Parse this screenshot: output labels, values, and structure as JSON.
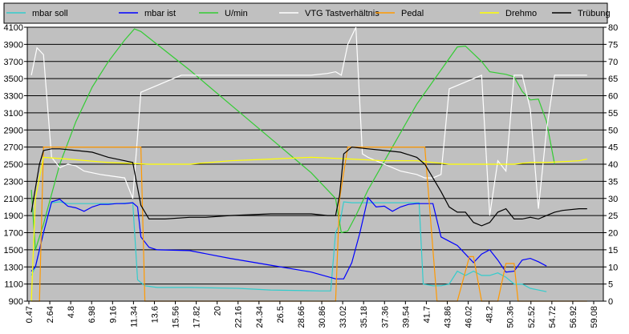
{
  "chart_data": {
    "type": "line",
    "title": "",
    "xlabel": "",
    "ylabel": "",
    "y_left": {
      "range": [
        900,
        4100
      ],
      "ticks": [
        900,
        1100,
        1300,
        1500,
        1700,
        1900,
        2100,
        2300,
        2500,
        2700,
        2900,
        3100,
        3300,
        3500,
        3700,
        3900,
        4100
      ]
    },
    "y_right": {
      "range": [
        0,
        80
      ],
      "ticks": [
        0,
        5,
        10,
        15,
        20,
        25,
        30,
        35,
        40,
        45,
        50,
        55,
        60,
        65,
        70,
        75,
        80
      ]
    },
    "x_range": [
      0,
      71
    ],
    "x_ticks": [
      "0.47",
      "2.64",
      "4.8",
      "6.98",
      "9.16",
      "11.34",
      "13.6",
      "15.56",
      "17.82",
      "20",
      "22.16",
      "24.34",
      "26.5",
      "28.66",
      "30.86",
      "33.02",
      "35.18",
      "37.36",
      "39.54",
      "41.7",
      "43.86",
      "46.02",
      "48.2",
      "50.36",
      "52.52",
      "54.72",
      "56.92",
      "59.08"
    ],
    "plot_background": "#c0c0c0",
    "grid": true,
    "legend_position": "top",
    "series": [
      {
        "name": "mbar soll",
        "color": "#33cccc",
        "axis": "left",
        "points": [
          [
            0.5,
            1200
          ],
          [
            1,
            1300
          ],
          [
            2,
            1700
          ],
          [
            3,
            2050
          ],
          [
            4,
            2060
          ],
          [
            5,
            2040
          ],
          [
            7,
            2040
          ],
          [
            9,
            2040
          ],
          [
            11,
            2040
          ],
          [
            13,
            2050
          ],
          [
            13.6,
            1150
          ],
          [
            14.5,
            1080
          ],
          [
            16,
            1060
          ],
          [
            20,
            1060
          ],
          [
            26,
            1050
          ],
          [
            30,
            1030
          ],
          [
            36,
            1020
          ],
          [
            37.4,
            1020
          ],
          [
            38,
            1700
          ],
          [
            38.5,
            1800
          ],
          [
            39,
            2060
          ],
          [
            40,
            2050
          ],
          [
            44,
            2050
          ],
          [
            47,
            2050
          ],
          [
            48.3,
            2050
          ],
          [
            48.8,
            1100
          ],
          [
            50,
            1080
          ],
          [
            51,
            1080
          ],
          [
            52,
            1100
          ],
          [
            53,
            1250
          ],
          [
            54,
            1200
          ],
          [
            55,
            1250
          ],
          [
            56,
            1200
          ],
          [
            57,
            1200
          ],
          [
            58,
            1230
          ],
          [
            59,
            1180
          ],
          [
            60,
            1100
          ],
          [
            61,
            1100
          ],
          [
            62,
            1050
          ],
          [
            63,
            1030
          ],
          [
            64,
            1010
          ]
        ]
      },
      {
        "name": "mbar ist",
        "color": "#0000ff",
        "axis": "left",
        "points": [
          [
            0.5,
            1250
          ],
          [
            1,
            1300
          ],
          [
            2,
            1700
          ],
          [
            3,
            2060
          ],
          [
            4,
            2090
          ],
          [
            5,
            2010
          ],
          [
            6,
            1990
          ],
          [
            7,
            1950
          ],
          [
            8,
            2000
          ],
          [
            9,
            2030
          ],
          [
            10,
            2030
          ],
          [
            11,
            2040
          ],
          [
            12,
            2040
          ],
          [
            13,
            2050
          ],
          [
            13.6,
            2000
          ],
          [
            14,
            1650
          ],
          [
            15,
            1530
          ],
          [
            16,
            1500
          ],
          [
            20,
            1490
          ],
          [
            25,
            1400
          ],
          [
            30,
            1320
          ],
          [
            35,
            1240
          ],
          [
            38,
            1160
          ],
          [
            39,
            1160
          ],
          [
            40,
            1350
          ],
          [
            41,
            1700
          ],
          [
            42,
            2110
          ],
          [
            43,
            2000
          ],
          [
            44,
            2010
          ],
          [
            45,
            1950
          ],
          [
            46,
            2000
          ],
          [
            47,
            2030
          ],
          [
            48,
            2040
          ],
          [
            49,
            2040
          ],
          [
            50,
            2040
          ],
          [
            51,
            1650
          ],
          [
            52,
            1600
          ],
          [
            53,
            1550
          ],
          [
            54,
            1450
          ],
          [
            55,
            1350
          ],
          [
            56,
            1450
          ],
          [
            57,
            1500
          ],
          [
            58,
            1380
          ],
          [
            59,
            1240
          ],
          [
            60,
            1250
          ],
          [
            61,
            1380
          ],
          [
            62,
            1400
          ],
          [
            63,
            1360
          ],
          [
            64,
            1310
          ]
        ]
      },
      {
        "name": "U/min",
        "color": "#33cc33",
        "axis": "left",
        "points": [
          [
            0.5,
            2200
          ],
          [
            1,
            1500
          ],
          [
            2,
            1800
          ],
          [
            4,
            2500
          ],
          [
            6,
            3000
          ],
          [
            8,
            3400
          ],
          [
            10,
            3700
          ],
          [
            12,
            3950
          ],
          [
            13.2,
            4080
          ],
          [
            14,
            4050
          ],
          [
            16,
            3900
          ],
          [
            20,
            3600
          ],
          [
            25,
            3200
          ],
          [
            30,
            2800
          ],
          [
            35,
            2400
          ],
          [
            38,
            2100
          ],
          [
            38.7,
            1700
          ],
          [
            39.5,
            1720
          ],
          [
            40.5,
            1900
          ],
          [
            42,
            2200
          ],
          [
            45,
            2700
          ],
          [
            48,
            3200
          ],
          [
            51,
            3600
          ],
          [
            53,
            3870
          ],
          [
            54,
            3880
          ],
          [
            56,
            3700
          ],
          [
            57,
            3580
          ],
          [
            59,
            3550
          ],
          [
            60,
            3520
          ],
          [
            61,
            3350
          ],
          [
            62,
            3250
          ],
          [
            63,
            3260
          ],
          [
            64,
            3000
          ],
          [
            65,
            2500
          ]
        ]
      },
      {
        "name": "VTG Tastverhältnis",
        "color": "#ffffff",
        "axis": "right",
        "points": [
          [
            0.5,
            66
          ],
          [
            1.2,
            74
          ],
          [
            2,
            72
          ],
          [
            3,
            42
          ],
          [
            4,
            39
          ],
          [
            5,
            40
          ],
          [
            6,
            39.5
          ],
          [
            7,
            38
          ],
          [
            9,
            37
          ],
          [
            12,
            36
          ],
          [
            13,
            30
          ],
          [
            14,
            61
          ],
          [
            16,
            63
          ],
          [
            18,
            65
          ],
          [
            19,
            66
          ],
          [
            25,
            66
          ],
          [
            30,
            66
          ],
          [
            35,
            66
          ],
          [
            37,
            66.5
          ],
          [
            38,
            67
          ],
          [
            38.7,
            66
          ],
          [
            39.5,
            75
          ],
          [
            40.5,
            80
          ],
          [
            41.3,
            43
          ],
          [
            42,
            42
          ],
          [
            44,
            40
          ],
          [
            46,
            38
          ],
          [
            48,
            37
          ],
          [
            49,
            36
          ],
          [
            50,
            36
          ],
          [
            51,
            37
          ],
          [
            52,
            62
          ],
          [
            54,
            64
          ],
          [
            56,
            66
          ],
          [
            57,
            25
          ],
          [
            58,
            41
          ],
          [
            59,
            38
          ],
          [
            60,
            66
          ],
          [
            61,
            66
          ],
          [
            62,
            56
          ],
          [
            63,
            27
          ],
          [
            64,
            50
          ],
          [
            65,
            66
          ],
          [
            68,
            66
          ],
          [
            69,
            66
          ]
        ]
      },
      {
        "name": "Pedal",
        "color": "#ff9900",
        "axis": "right",
        "points": [
          [
            0.5,
            0
          ],
          [
            1.5,
            0
          ],
          [
            2,
            45
          ],
          [
            12,
            45
          ],
          [
            14,
            45
          ],
          [
            14.5,
            0
          ],
          [
            38,
            0
          ],
          [
            38.5,
            30
          ],
          [
            39.5,
            45
          ],
          [
            49,
            45
          ],
          [
            49.5,
            30
          ],
          [
            50.5,
            0
          ],
          [
            53,
            0
          ],
          [
            54.5,
            13
          ],
          [
            55,
            13
          ],
          [
            56,
            0
          ],
          [
            58,
            0
          ],
          [
            59,
            11
          ],
          [
            60,
            11
          ],
          [
            60.5,
            0
          ],
          [
            69,
            0
          ]
        ]
      },
      {
        "name": "Drehmo",
        "color": "#ffff00",
        "axis": "right",
        "points": [
          [
            0.5,
            0
          ],
          [
            1,
            30
          ],
          [
            2,
            42
          ],
          [
            5,
            41.5
          ],
          [
            10,
            40.5
          ],
          [
            15,
            40
          ],
          [
            20,
            40
          ],
          [
            25,
            41
          ],
          [
            30,
            41.5
          ],
          [
            35,
            42
          ],
          [
            40,
            41.5
          ],
          [
            44,
            41
          ],
          [
            48,
            41
          ],
          [
            52,
            40
          ],
          [
            56,
            40
          ],
          [
            60,
            40
          ],
          [
            62,
            40.5
          ],
          [
            64,
            40.5
          ],
          [
            68,
            41
          ],
          [
            69,
            41.5
          ]
        ]
      },
      {
        "name": "Trübung",
        "color": "#000000",
        "axis": "right",
        "points": [
          [
            0.5,
            26
          ],
          [
            1.5,
            40
          ],
          [
            2,
            44
          ],
          [
            3,
            44.5
          ],
          [
            4,
            44.5
          ],
          [
            6,
            44
          ],
          [
            8,
            43.5
          ],
          [
            10,
            42
          ],
          [
            12,
            41
          ],
          [
            13,
            40.5
          ],
          [
            14,
            28
          ],
          [
            15,
            24
          ],
          [
            17,
            24
          ],
          [
            20,
            24.5
          ],
          [
            22,
            24.5
          ],
          [
            25,
            25
          ],
          [
            30,
            25.5
          ],
          [
            35,
            25.5
          ],
          [
            37,
            25
          ],
          [
            38,
            25
          ],
          [
            38.5,
            31
          ],
          [
            39,
            43
          ],
          [
            40,
            45
          ],
          [
            42,
            44.5
          ],
          [
            44,
            44
          ],
          [
            46,
            43.5
          ],
          [
            48,
            42
          ],
          [
            49,
            40
          ],
          [
            50,
            36
          ],
          [
            51,
            32
          ],
          [
            52,
            27.5
          ],
          [
            53,
            26
          ],
          [
            54,
            26
          ],
          [
            55,
            23
          ],
          [
            56,
            22
          ],
          [
            57,
            23
          ],
          [
            58,
            26
          ],
          [
            59,
            27
          ],
          [
            60,
            24
          ],
          [
            61,
            24
          ],
          [
            62,
            24.5
          ],
          [
            63,
            24
          ],
          [
            64,
            25
          ],
          [
            65,
            26
          ],
          [
            66,
            26.5
          ],
          [
            68,
            27
          ],
          [
            69,
            27
          ]
        ]
      }
    ]
  }
}
